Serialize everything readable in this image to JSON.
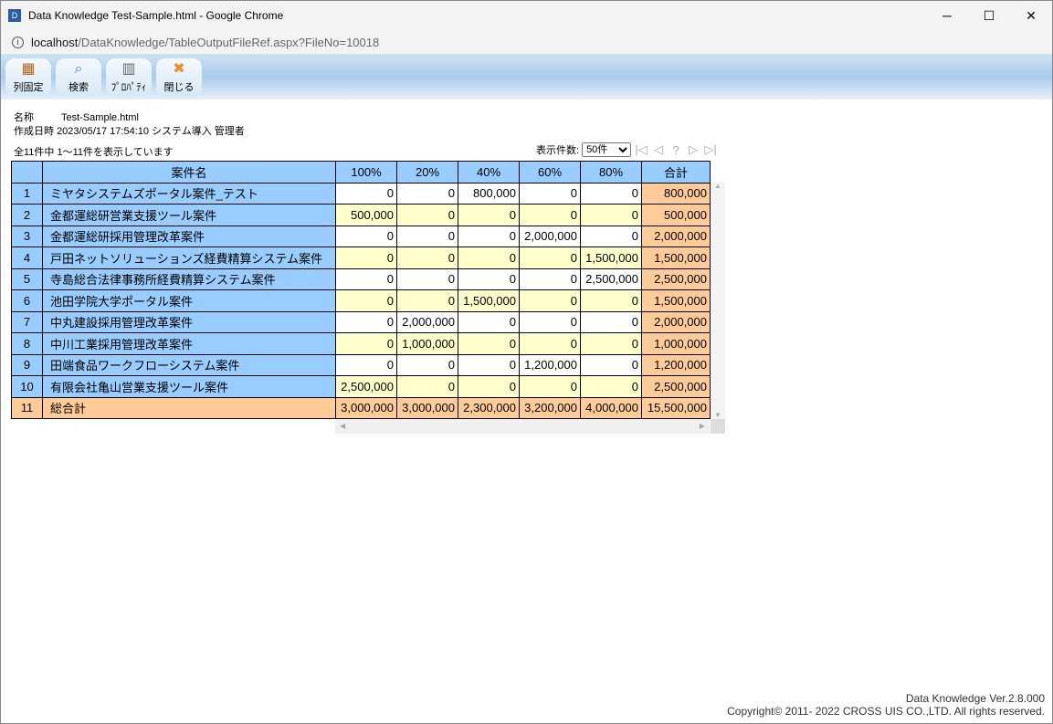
{
  "window": {
    "title": "Data Knowledge Test-Sample.html - Google Chrome",
    "url_host": "localhost",
    "url_path": "/DataKnowledge/TableOutputFileRef.aspx?FileNo=10018"
  },
  "toolbar": [
    {
      "label": "列固定",
      "icon": "grid-icon"
    },
    {
      "label": "検索",
      "icon": "magnifier-icon"
    },
    {
      "label": "ﾌﾟﾛﾊﾟﾃｨ",
      "icon": "book-icon"
    },
    {
      "label": "閉じる",
      "icon": "close-x-icon"
    }
  ],
  "meta": {
    "name_label": "名称",
    "name": "Test-Sample.html",
    "created_label": "作成日時",
    "created": "2023/05/17 17:54:10 システム導入 管理者",
    "count": "全11件中 1～11件を表示しています"
  },
  "pager": {
    "label": "表示件数:",
    "selected": "50件"
  },
  "table": {
    "headers": [
      "",
      "案件名",
      "100%",
      "20%",
      "40%",
      "60%",
      "80%",
      "合計"
    ],
    "rows": [
      [
        "1",
        "ミヤタシステムズポータル案件_テスト",
        "0",
        "0",
        "800,000",
        "0",
        "0",
        "800,000"
      ],
      [
        "2",
        "金都運総研営業支援ツール案件",
        "500,000",
        "0",
        "0",
        "0",
        "0",
        "500,000"
      ],
      [
        "3",
        "金都運総研採用管理改革案件",
        "0",
        "0",
        "0",
        "2,000,000",
        "0",
        "2,000,000"
      ],
      [
        "4",
        "戸田ネットソリューションズ経費精算システム案件",
        "0",
        "0",
        "0",
        "0",
        "1,500,000",
        "1,500,000"
      ],
      [
        "5",
        "寺島総合法律事務所経費精算システム案件",
        "0",
        "0",
        "0",
        "0",
        "2,500,000",
        "2,500,000"
      ],
      [
        "6",
        "池田学院大学ポータル案件",
        "0",
        "0",
        "1,500,000",
        "0",
        "0",
        "1,500,000"
      ],
      [
        "7",
        "中丸建設採用管理改革案件",
        "0",
        "2,000,000",
        "0",
        "0",
        "0",
        "2,000,000"
      ],
      [
        "8",
        "中川工業採用管理改革案件",
        "0",
        "1,000,000",
        "0",
        "0",
        "0",
        "1,000,000"
      ],
      [
        "9",
        "田端食品ワークフローシステム案件",
        "0",
        "0",
        "0",
        "1,200,000",
        "0",
        "1,200,000"
      ],
      [
        "10",
        "有限会社亀山営業支援ツール案件",
        "2,500,000",
        "0",
        "0",
        "0",
        "0",
        "2,500,000"
      ],
      [
        "11",
        "総合計",
        "3,000,000",
        "3,000,000",
        "2,300,000",
        "3,200,000",
        "4,000,000",
        "15,500,000"
      ]
    ]
  },
  "footer": {
    "version": "Data Knowledge Ver.2.8.000",
    "copyright": "Copyright© 2011- 2022 CROSS UIS CO.,LTD. All rights reserved."
  }
}
